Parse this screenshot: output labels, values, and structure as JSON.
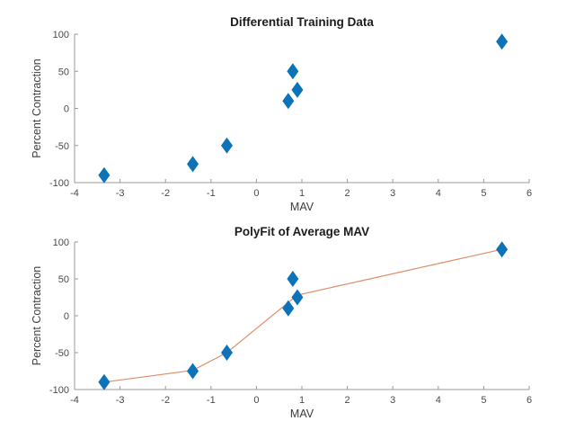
{
  "figure": {
    "background": "#ffffff"
  },
  "colors": {
    "marker_fill": "#0d73b8",
    "fit_line": "#dd8f68",
    "axis_line": "#9a9a9a",
    "tick_label": "#4a4a4a",
    "axis_label": "#3d3d3d",
    "title": "#1c1c1c"
  },
  "chart_data": [
    {
      "type": "scatter",
      "title": "Differential Training Data",
      "xlabel": "MAV",
      "ylabel": "Percent Contraction",
      "xlim": [
        -4,
        6
      ],
      "ylim": [
        -100,
        100
      ],
      "xticks": [
        -4,
        -3,
        -2,
        -1,
        0,
        1,
        2,
        3,
        4,
        5,
        6
      ],
      "yticks": [
        -100,
        -50,
        0,
        50,
        100
      ],
      "grid": "off",
      "legend": "none",
      "marker": "diamond",
      "points": [
        [
          -3.35,
          -90
        ],
        [
          -1.4,
          -75
        ],
        [
          -0.65,
          -50
        ],
        [
          0.7,
          10
        ],
        [
          0.8,
          50
        ],
        [
          0.9,
          25
        ],
        [
          5.4,
          90
        ]
      ]
    },
    {
      "type": "scatter+line",
      "title": "PolyFit of Average MAV",
      "xlabel": "MAV",
      "ylabel": "Percent Contraction",
      "xlim": [
        -4,
        6
      ],
      "ylim": [
        -100,
        100
      ],
      "xticks": [
        -4,
        -3,
        -2,
        -1,
        0,
        1,
        2,
        3,
        4,
        5,
        6
      ],
      "yticks": [
        -100,
        -50,
        0,
        50,
        100
      ],
      "grid": "off",
      "legend": "none",
      "marker": "diamond",
      "points": [
        [
          -3.35,
          -90
        ],
        [
          -1.4,
          -75
        ],
        [
          -0.65,
          -50
        ],
        [
          0.7,
          10
        ],
        [
          0.8,
          50
        ],
        [
          0.9,
          25
        ],
        [
          5.4,
          90
        ]
      ],
      "fit_line": [
        [
          -3.35,
          -90
        ],
        [
          -1.4,
          -74
        ],
        [
          -0.65,
          -50
        ],
        [
          0.9,
          28
        ],
        [
          5.4,
          90
        ]
      ]
    }
  ]
}
